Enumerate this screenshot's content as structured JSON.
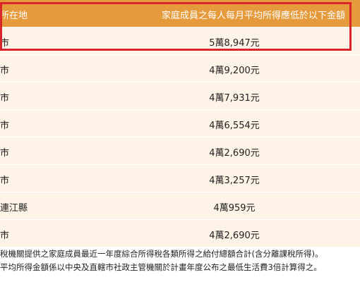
{
  "table": {
    "headers": [
      "所在地",
      "家庭成員之每人每月平均所得應低於以下金額"
    ],
    "rows": [
      {
        "location": "市",
        "amount": "5萬8,947元"
      },
      {
        "location": "市",
        "amount": "4萬9,200元"
      },
      {
        "location": "市",
        "amount": "4萬7,931元"
      },
      {
        "location": "市",
        "amount": "4萬6,554元"
      },
      {
        "location": "市",
        "amount": "4萬2,690元"
      },
      {
        "location": "市",
        "amount": "4萬3,257元"
      },
      {
        "location": "連江縣",
        "amount": "4萬959元"
      },
      {
        "location": "市",
        "amount": "4萬2,690元"
      }
    ]
  },
  "notes": [
    "稅機關提供之家庭成員最近一年度綜合所得稅各類所得之給付總額合計(含分離課稅所得)。",
    "平均所得金額係以中央及直轄市社政主管機關於計畫年度公布之最低生活費3倍計算得之。"
  ],
  "colors": {
    "header_bg": "#e59a3c",
    "row_bg": "#fdf3e6",
    "highlight_border": "#d9262b"
  }
}
